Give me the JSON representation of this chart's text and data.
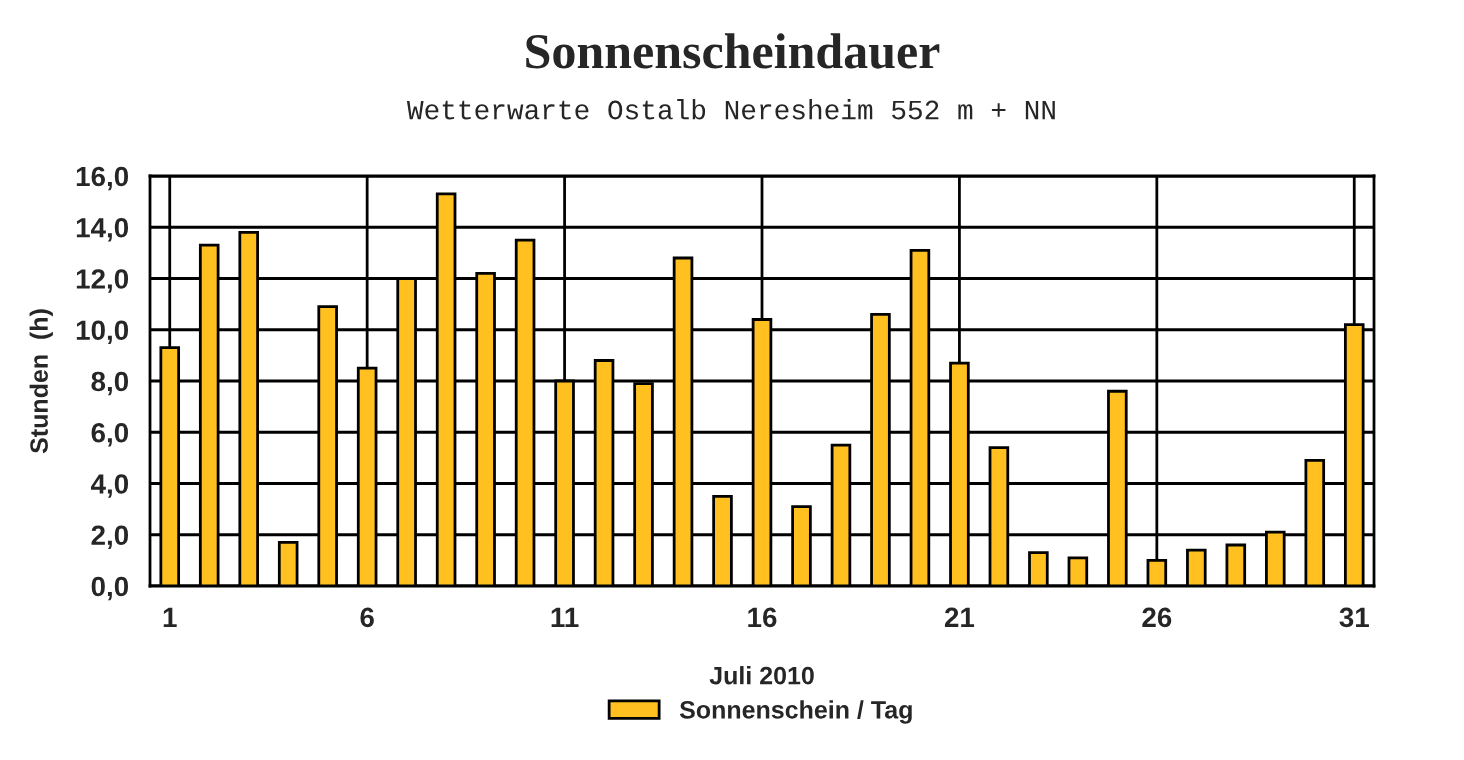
{
  "chart_data": {
    "type": "bar",
    "title": "Sonnenscheindauer",
    "subtitle": "Wetterwarte Ostalb Neresheim 552 m + NN",
    "xlabel": "Juli 2010",
    "ylabel": "Stunden  (h)",
    "x": [
      1,
      2,
      3,
      4,
      5,
      6,
      7,
      8,
      9,
      10,
      11,
      12,
      13,
      14,
      15,
      16,
      17,
      18,
      19,
      20,
      21,
      22,
      23,
      24,
      25,
      26,
      27,
      28,
      29,
      30,
      31
    ],
    "series": [
      {
        "name": "Sonnenschein / Tag",
        "color": "#ffc020",
        "values": [
          9.3,
          13.3,
          13.8,
          1.7,
          10.9,
          8.5,
          12.0,
          15.3,
          12.2,
          13.5,
          8.0,
          8.8,
          7.9,
          12.8,
          3.5,
          10.4,
          3.1,
          5.5,
          10.6,
          13.1,
          8.7,
          5.4,
          1.3,
          1.1,
          7.6,
          1.0,
          1.4,
          1.6,
          2.1,
          4.9,
          10.2
        ]
      }
    ],
    "xlim": [
      0.5,
      31.5
    ],
    "xticks": [
      1,
      6,
      11,
      16,
      21,
      26,
      31
    ],
    "ylim": [
      0,
      16
    ],
    "yticks": [
      {
        "value": 0,
        "label": "0,0"
      },
      {
        "value": 2,
        "label": "2,0"
      },
      {
        "value": 4,
        "label": "4,0"
      },
      {
        "value": 6,
        "label": "6,0"
      },
      {
        "value": 8,
        "label": "8,0"
      },
      {
        "value": 10,
        "label": "10,0"
      },
      {
        "value": 12,
        "label": "12,0"
      },
      {
        "value": 14,
        "label": "14,0"
      },
      {
        "value": 16,
        "label": "16,0"
      }
    ],
    "grid": true,
    "legend": "bottom"
  }
}
